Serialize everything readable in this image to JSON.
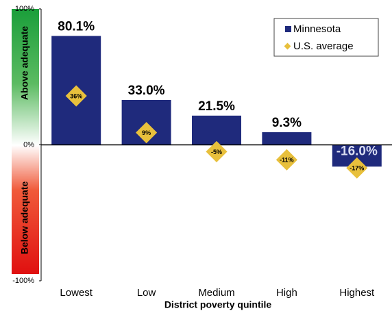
{
  "chart_data": {
    "type": "bar",
    "x_label": "District poverty quintile",
    "annotations": [
      "Above adequate",
      "Below adequate"
    ],
    "categories": [
      "Lowest",
      "Low",
      "Medium",
      "High",
      "Highest"
    ],
    "series": [
      {
        "name": "Minnesota",
        "color": "#1f2a7c",
        "values": [
          80.1,
          33.0,
          21.5,
          9.3,
          -16.0
        ],
        "value_labels": [
          "80.1%",
          "33.0%",
          "21.5%",
          "9.3%",
          "-16.0%"
        ]
      },
      {
        "name": "U.S. average",
        "color": "#e8c03c",
        "values": [
          36,
          9,
          -5,
          -11,
          -17
        ],
        "value_labels": [
          "36%",
          "9%",
          "-5%",
          "-11%",
          "-17%"
        ]
      }
    ],
    "ylim": [
      -100,
      100
    ],
    "yticks": [
      {
        "value": -100,
        "label": "-100%"
      },
      {
        "value": 0,
        "label": "0%"
      },
      {
        "value": 100,
        "label": "100%"
      }
    ]
  }
}
